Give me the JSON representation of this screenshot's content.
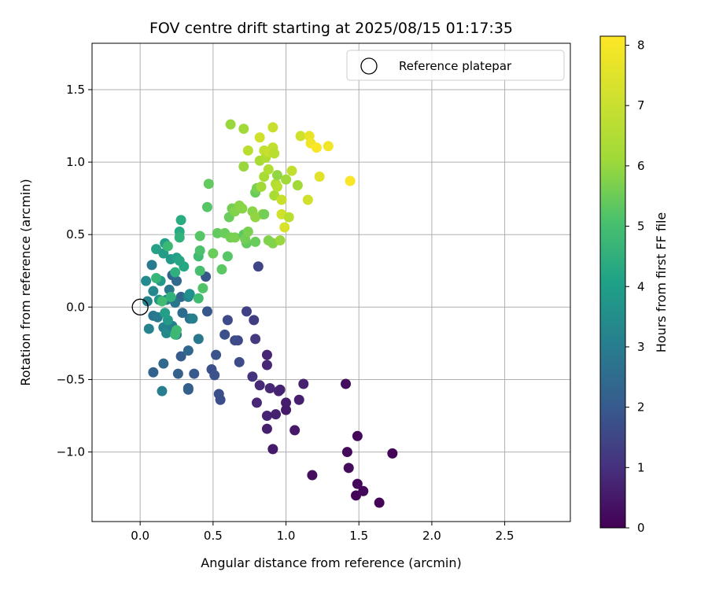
{
  "chart_data": {
    "type": "scatter",
    "title": "FOV centre drift starting at 2025/08/15 01:17:35",
    "xlabel": "Angular distance from reference (arcmin)",
    "ylabel": "Rotation from reference (arcmin)",
    "xlim": [
      -0.33,
      2.95
    ],
    "ylim": [
      -1.48,
      1.82
    ],
    "xticks": [
      0.0,
      0.5,
      1.0,
      1.5,
      2.0,
      2.5
    ],
    "xtick_labels": [
      "0.0",
      "0.5",
      "1.0",
      "1.5",
      "2.0",
      "2.5"
    ],
    "yticks": [
      -1.0,
      -0.5,
      0.0,
      0.5,
      1.0,
      1.5
    ],
    "ytick_labels": [
      "−1.0",
      "−0.5",
      "0.0",
      "0.5",
      "1.0",
      "1.5"
    ],
    "grid": true,
    "legend": {
      "position": "top-right",
      "entries": [
        "Reference platepar"
      ]
    },
    "reference_point": {
      "x": 0.0,
      "y": 0.0
    },
    "colorbar": {
      "label": "Hours from first FF file",
      "range": [
        0,
        8.15
      ],
      "ticks": [
        0,
        1,
        2,
        3,
        4,
        5,
        6,
        7,
        8
      ],
      "tick_labels": [
        "0",
        "1",
        "2",
        "3",
        "4",
        "5",
        "6",
        "7",
        "8"
      ],
      "colormap": "viridis"
    },
    "points": [
      {
        "x": 1.64,
        "y": -1.35,
        "h": 0.05
      },
      {
        "x": 1.48,
        "y": -1.3,
        "h": 0.1
      },
      {
        "x": 1.53,
        "y": -1.27,
        "h": 0.15
      },
      {
        "x": 1.49,
        "y": -1.22,
        "h": 0.2
      },
      {
        "x": 1.18,
        "y": -1.16,
        "h": 0.3
      },
      {
        "x": 1.43,
        "y": -1.11,
        "h": 0.25
      },
      {
        "x": 1.73,
        "y": -1.01,
        "h": 0.1
      },
      {
        "x": 1.42,
        "y": -1.0,
        "h": 0.2
      },
      {
        "x": 1.49,
        "y": -0.89,
        "h": 0.15
      },
      {
        "x": 1.41,
        "y": -0.53,
        "h": 0.25
      },
      {
        "x": 0.91,
        "y": -0.98,
        "h": 0.6
      },
      {
        "x": 1.06,
        "y": -0.85,
        "h": 0.55
      },
      {
        "x": 0.87,
        "y": -0.84,
        "h": 0.7
      },
      {
        "x": 0.87,
        "y": -0.75,
        "h": 0.8
      },
      {
        "x": 0.93,
        "y": -0.74,
        "h": 0.75
      },
      {
        "x": 1.0,
        "y": -0.71,
        "h": 0.6
      },
      {
        "x": 1.0,
        "y": -0.66,
        "h": 0.65
      },
      {
        "x": 1.09,
        "y": -0.64,
        "h": 0.7
      },
      {
        "x": 0.8,
        "y": -0.66,
        "h": 0.9
      },
      {
        "x": 0.95,
        "y": -0.58,
        "h": 0.85
      },
      {
        "x": 0.89,
        "y": -0.56,
        "h": 0.9
      },
      {
        "x": 0.96,
        "y": -0.57,
        "h": 0.8
      },
      {
        "x": 1.12,
        "y": -0.53,
        "h": 0.75
      },
      {
        "x": 0.82,
        "y": -0.54,
        "h": 0.95
      },
      {
        "x": 0.87,
        "y": -0.4,
        "h": 0.9
      },
      {
        "x": 0.87,
        "y": -0.33,
        "h": 0.85
      },
      {
        "x": 0.77,
        "y": -0.48,
        "h": 1.2
      },
      {
        "x": 0.73,
        "y": -0.03,
        "h": 1.6
      },
      {
        "x": 0.78,
        "y": -0.09,
        "h": 1.5
      },
      {
        "x": 0.79,
        "y": -0.22,
        "h": 1.4
      },
      {
        "x": 0.81,
        "y": 0.28,
        "h": 1.7
      },
      {
        "x": 0.67,
        "y": -0.23,
        "h": 1.8
      },
      {
        "x": 0.65,
        "y": -0.23,
        "h": 1.9
      },
      {
        "x": 0.6,
        "y": -0.09,
        "h": 1.9
      },
      {
        "x": 0.58,
        "y": -0.19,
        "h": 2.0
      },
      {
        "x": 0.68,
        "y": -0.38,
        "h": 1.9
      },
      {
        "x": 0.52,
        "y": -0.33,
        "h": 2.1
      },
      {
        "x": 0.49,
        "y": -0.43,
        "h": 2.0
      },
      {
        "x": 0.51,
        "y": -0.47,
        "h": 2.1
      },
      {
        "x": 0.54,
        "y": -0.6,
        "h": 2.0
      },
      {
        "x": 0.55,
        "y": -0.64,
        "h": 1.95
      },
      {
        "x": 0.46,
        "y": -0.03,
        "h": 2.2
      },
      {
        "x": 0.45,
        "y": 0.21,
        "h": 2.2
      },
      {
        "x": 0.33,
        "y": -0.56,
        "h": 2.4
      },
      {
        "x": 0.37,
        "y": -0.46,
        "h": 2.3
      },
      {
        "x": 0.26,
        "y": -0.46,
        "h": 2.5
      },
      {
        "x": 0.28,
        "y": -0.34,
        "h": 2.4
      },
      {
        "x": 0.33,
        "y": -0.3,
        "h": 2.7
      },
      {
        "x": 0.16,
        "y": -0.39,
        "h": 2.8
      },
      {
        "x": 0.09,
        "y": -0.45,
        "h": 2.6
      },
      {
        "x": 0.15,
        "y": -0.58,
        "h": 3.5
      },
      {
        "x": 0.33,
        "y": -0.57,
        "h": 2.5
      },
      {
        "x": 0.22,
        "y": 0.22,
        "h": 2.6
      },
      {
        "x": 0.25,
        "y": 0.18,
        "h": 2.8
      },
      {
        "x": 0.28,
        "y": 0.07,
        "h": 2.7
      },
      {
        "x": 0.29,
        "y": -0.04,
        "h": 2.9
      },
      {
        "x": 0.25,
        "y": -0.19,
        "h": 3.0
      },
      {
        "x": 0.34,
        "y": -0.08,
        "h": 3.1
      },
      {
        "x": 0.4,
        "y": -0.22,
        "h": 3.3
      },
      {
        "x": 0.36,
        "y": -0.08,
        "h": 3.5
      },
      {
        "x": 0.06,
        "y": -0.15,
        "h": 3.6
      },
      {
        "x": 0.09,
        "y": -0.06,
        "h": 3.2
      },
      {
        "x": 0.12,
        "y": -0.07,
        "h": 3.4
      },
      {
        "x": 0.16,
        "y": -0.14,
        "h": 3.6
      },
      {
        "x": 0.18,
        "y": -0.18,
        "h": 3.8
      },
      {
        "x": 0.22,
        "y": -0.13,
        "h": 3.5
      },
      {
        "x": 0.05,
        "y": 0.04,
        "h": 3.6
      },
      {
        "x": 0.09,
        "y": 0.11,
        "h": 3.8
      },
      {
        "x": 0.08,
        "y": 0.29,
        "h": 3.4
      },
      {
        "x": 0.04,
        "y": 0.18,
        "h": 3.9
      },
      {
        "x": 0.18,
        "y": 0.05,
        "h": 3.5
      },
      {
        "x": 0.2,
        "y": 0.12,
        "h": 3.3
      },
      {
        "x": 0.24,
        "y": 0.03,
        "h": 3.2
      },
      {
        "x": 0.33,
        "y": 0.07,
        "h": 3.7
      },
      {
        "x": 0.34,
        "y": 0.09,
        "h": 4.1
      },
      {
        "x": 0.19,
        "y": -0.09,
        "h": 4.4
      },
      {
        "x": 0.17,
        "y": -0.04,
        "h": 4.6
      },
      {
        "x": 0.13,
        "y": 0.05,
        "h": 4.3
      },
      {
        "x": 0.14,
        "y": 0.18,
        "h": 4.4
      },
      {
        "x": 0.11,
        "y": 0.4,
        "h": 4.7
      },
      {
        "x": 0.16,
        "y": 0.37,
        "h": 4.5
      },
      {
        "x": 0.17,
        "y": 0.44,
        "h": 4.6
      },
      {
        "x": 0.21,
        "y": 0.33,
        "h": 4.4
      },
      {
        "x": 0.25,
        "y": 0.34,
        "h": 4.6
      },
      {
        "x": 0.27,
        "y": 0.32,
        "h": 4.8
      },
      {
        "x": 0.27,
        "y": 0.52,
        "h": 5.0
      },
      {
        "x": 0.28,
        "y": 0.6,
        "h": 5.1
      },
      {
        "x": 0.27,
        "y": 0.48,
        "h": 5.3
      },
      {
        "x": 0.3,
        "y": 0.28,
        "h": 4.9
      },
      {
        "x": 0.24,
        "y": 0.24,
        "h": 5.2
      },
      {
        "x": 0.21,
        "y": 0.07,
        "h": 5.3
      },
      {
        "x": 0.19,
        "y": 0.42,
        "h": 5.5
      },
      {
        "x": 0.15,
        "y": 0.04,
        "h": 5.6
      },
      {
        "x": 0.11,
        "y": 0.2,
        "h": 5.4
      },
      {
        "x": 0.25,
        "y": -0.16,
        "h": 5.6
      },
      {
        "x": 0.24,
        "y": -0.19,
        "h": 5.5
      },
      {
        "x": 0.4,
        "y": 0.06,
        "h": 5.6
      },
      {
        "x": 0.41,
        "y": 0.25,
        "h": 5.7
      },
      {
        "x": 0.4,
        "y": 0.35,
        "h": 5.6
      },
      {
        "x": 0.41,
        "y": 0.39,
        "h": 5.8
      },
      {
        "x": 0.43,
        "y": 0.13,
        "h": 5.9
      },
      {
        "x": 0.41,
        "y": 0.49,
        "h": 6.0
      },
      {
        "x": 0.46,
        "y": 0.69,
        "h": 6.0
      },
      {
        "x": 0.47,
        "y": 0.85,
        "h": 6.2
      },
      {
        "x": 0.5,
        "y": 0.37,
        "h": 6.3
      },
      {
        "x": 0.53,
        "y": 0.51,
        "h": 6.2
      },
      {
        "x": 0.56,
        "y": 0.26,
        "h": 6.1
      },
      {
        "x": 0.58,
        "y": 0.51,
        "h": 6.3
      },
      {
        "x": 0.6,
        "y": 0.35,
        "h": 6.0
      },
      {
        "x": 0.61,
        "y": 0.62,
        "h": 6.3
      },
      {
        "x": 0.62,
        "y": 0.48,
        "h": 6.4
      },
      {
        "x": 0.63,
        "y": 0.68,
        "h": 6.4
      },
      {
        "x": 0.65,
        "y": 0.48,
        "h": 6.5
      },
      {
        "x": 0.65,
        "y": 0.66,
        "h": 6.6
      },
      {
        "x": 0.68,
        "y": 0.7,
        "h": 6.7
      },
      {
        "x": 0.7,
        "y": 0.68,
        "h": 6.7
      },
      {
        "x": 0.71,
        "y": 0.5,
        "h": 6.1
      },
      {
        "x": 0.73,
        "y": 0.44,
        "h": 6.2
      },
      {
        "x": 0.72,
        "y": 0.47,
        "h": 6.4
      },
      {
        "x": 0.74,
        "y": 0.52,
        "h": 6.5
      },
      {
        "x": 0.77,
        "y": 0.66,
        "h": 6.7
      },
      {
        "x": 0.79,
        "y": 0.62,
        "h": 6.8
      },
      {
        "x": 0.79,
        "y": 0.79,
        "h": 6.3
      },
      {
        "x": 0.8,
        "y": 0.82,
        "h": 6.5
      },
      {
        "x": 0.79,
        "y": 0.45,
        "h": 6.3
      },
      {
        "x": 0.84,
        "y": 0.64,
        "h": 6.9
      },
      {
        "x": 0.83,
        "y": 0.83,
        "h": 7.0
      },
      {
        "x": 0.85,
        "y": 0.64,
        "h": 6.4
      },
      {
        "x": 0.85,
        "y": 0.9,
        "h": 7.1
      },
      {
        "x": 0.88,
        "y": 0.46,
        "h": 6.6
      },
      {
        "x": 0.88,
        "y": 0.95,
        "h": 7.2
      },
      {
        "x": 0.91,
        "y": 0.44,
        "h": 6.6
      },
      {
        "x": 0.92,
        "y": 0.77,
        "h": 7.1
      },
      {
        "x": 0.93,
        "y": 0.85,
        "h": 7.2
      },
      {
        "x": 0.94,
        "y": 0.83,
        "h": 7.3
      },
      {
        "x": 0.94,
        "y": 0.91,
        "h": 6.8
      },
      {
        "x": 0.96,
        "y": 0.46,
        "h": 6.9
      },
      {
        "x": 0.97,
        "y": 0.74,
        "h": 7.5
      },
      {
        "x": 0.97,
        "y": 0.64,
        "h": 7.6
      },
      {
        "x": 0.99,
        "y": 0.55,
        "h": 7.7
      },
      {
        "x": 1.0,
        "y": 0.88,
        "h": 7.0
      },
      {
        "x": 1.02,
        "y": 0.62,
        "h": 7.3
      },
      {
        "x": 1.04,
        "y": 0.94,
        "h": 7.4
      },
      {
        "x": 1.08,
        "y": 0.84,
        "h": 7.0
      },
      {
        "x": 1.15,
        "y": 0.74,
        "h": 7.6
      },
      {
        "x": 0.74,
        "y": 1.08,
        "h": 7.3
      },
      {
        "x": 0.82,
        "y": 1.01,
        "h": 7.1
      },
      {
        "x": 0.85,
        "y": 1.08,
        "h": 7.4
      },
      {
        "x": 0.86,
        "y": 1.03,
        "h": 7.2
      },
      {
        "x": 0.88,
        "y": 1.07,
        "h": 7.5
      },
      {
        "x": 0.91,
        "y": 1.1,
        "h": 7.4
      },
      {
        "x": 0.92,
        "y": 1.06,
        "h": 7.3
      },
      {
        "x": 0.82,
        "y": 1.17,
        "h": 7.6
      },
      {
        "x": 0.71,
        "y": 0.97,
        "h": 6.9
      },
      {
        "x": 0.71,
        "y": 1.23,
        "h": 7.0
      },
      {
        "x": 0.62,
        "y": 1.26,
        "h": 6.9
      },
      {
        "x": 0.91,
        "y": 1.24,
        "h": 7.5
      },
      {
        "x": 1.1,
        "y": 1.18,
        "h": 7.6
      },
      {
        "x": 1.16,
        "y": 1.18,
        "h": 7.9
      },
      {
        "x": 1.17,
        "y": 1.13,
        "h": 8.0
      },
      {
        "x": 1.21,
        "y": 1.1,
        "h": 8.1
      },
      {
        "x": 1.29,
        "y": 1.11,
        "h": 8.0
      },
      {
        "x": 1.23,
        "y": 0.9,
        "h": 7.8
      },
      {
        "x": 1.44,
        "y": 0.87,
        "h": 8.1
      }
    ]
  }
}
